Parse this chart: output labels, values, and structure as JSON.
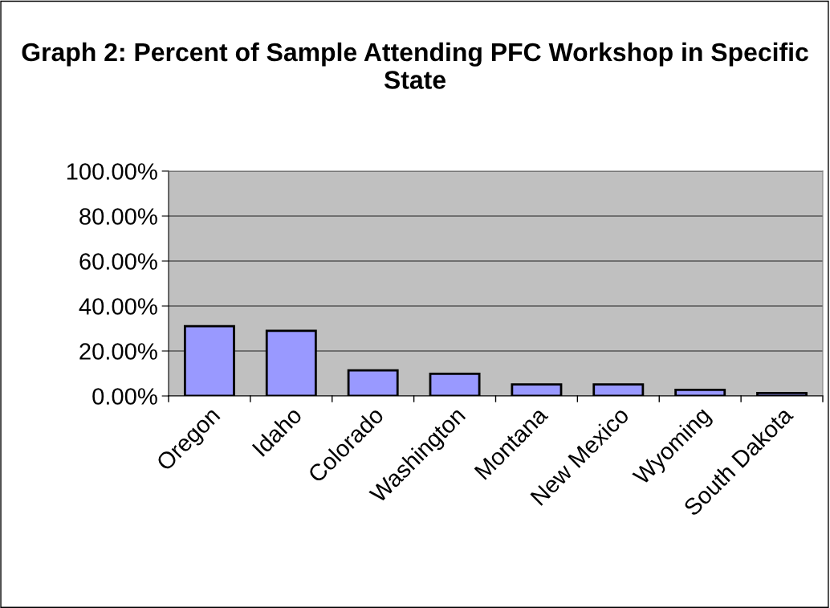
{
  "chart_data": {
    "type": "bar",
    "title": "Graph 2: Percent of Sample Attending PFC Workshop in Specific State",
    "categories": [
      "Oregon",
      "Idaho",
      "Colorado",
      "Washington",
      "Montana",
      "New Mexico",
      "Wyoming",
      "South Dakota"
    ],
    "values": [
      31.0,
      29.0,
      11.4,
      9.9,
      5.1,
      5.1,
      2.7,
      1.3
    ],
    "color": "#9999ff",
    "ylim": [
      0,
      100
    ],
    "yticks": [
      {
        "value": 0,
        "label": "0.00%"
      },
      {
        "value": 20,
        "label": "20.00%"
      },
      {
        "value": 40,
        "label": "40.00%"
      },
      {
        "value": 60,
        "label": "60.00%"
      },
      {
        "value": 80,
        "label": "80.00%"
      },
      {
        "value": 100,
        "label": "100.00%"
      }
    ],
    "grid": "y"
  }
}
